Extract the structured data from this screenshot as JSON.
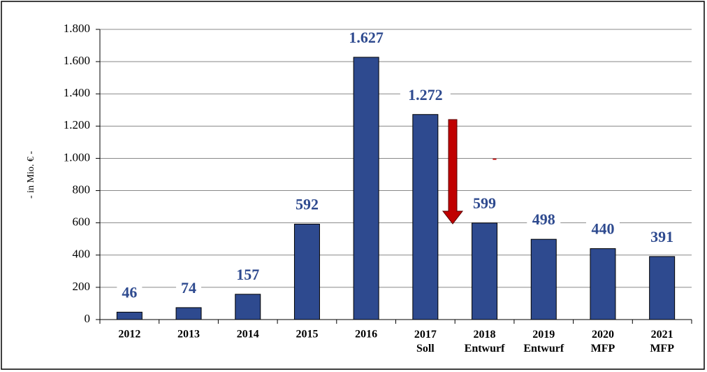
{
  "chart_data": {
    "type": "bar",
    "y_axis_label": "- in Mio. € -",
    "categories": [
      "2012",
      "2013",
      "2014",
      "2015",
      "2016",
      "2017\nSoll",
      "2018\nEntwurf",
      "2019\nEntwurf",
      "2020\nMFP",
      "2021\nMFP"
    ],
    "values": [
      46,
      74,
      157,
      592,
      1627,
      1272,
      599,
      498,
      440,
      391
    ],
    "value_labels": [
      "46",
      "74",
      "157",
      "592",
      "1.627",
      "1.272",
      "599",
      "498",
      "440",
      "391"
    ],
    "color": "#2E4A8F",
    "ylim": [
      0,
      1800
    ],
    "yticks": [
      0,
      200,
      400,
      600,
      800,
      {
        "value": 1000,
        "label": "1.000"
      },
      {
        "value": 1200,
        "label": "1.200"
      },
      {
        "value": 1400,
        "label": "1.400"
      },
      {
        "value": 1600,
        "label": "1.600"
      },
      {
        "value": 1800,
        "label": "1.800"
      }
    ],
    "grid": true,
    "annotation": "-"
  }
}
